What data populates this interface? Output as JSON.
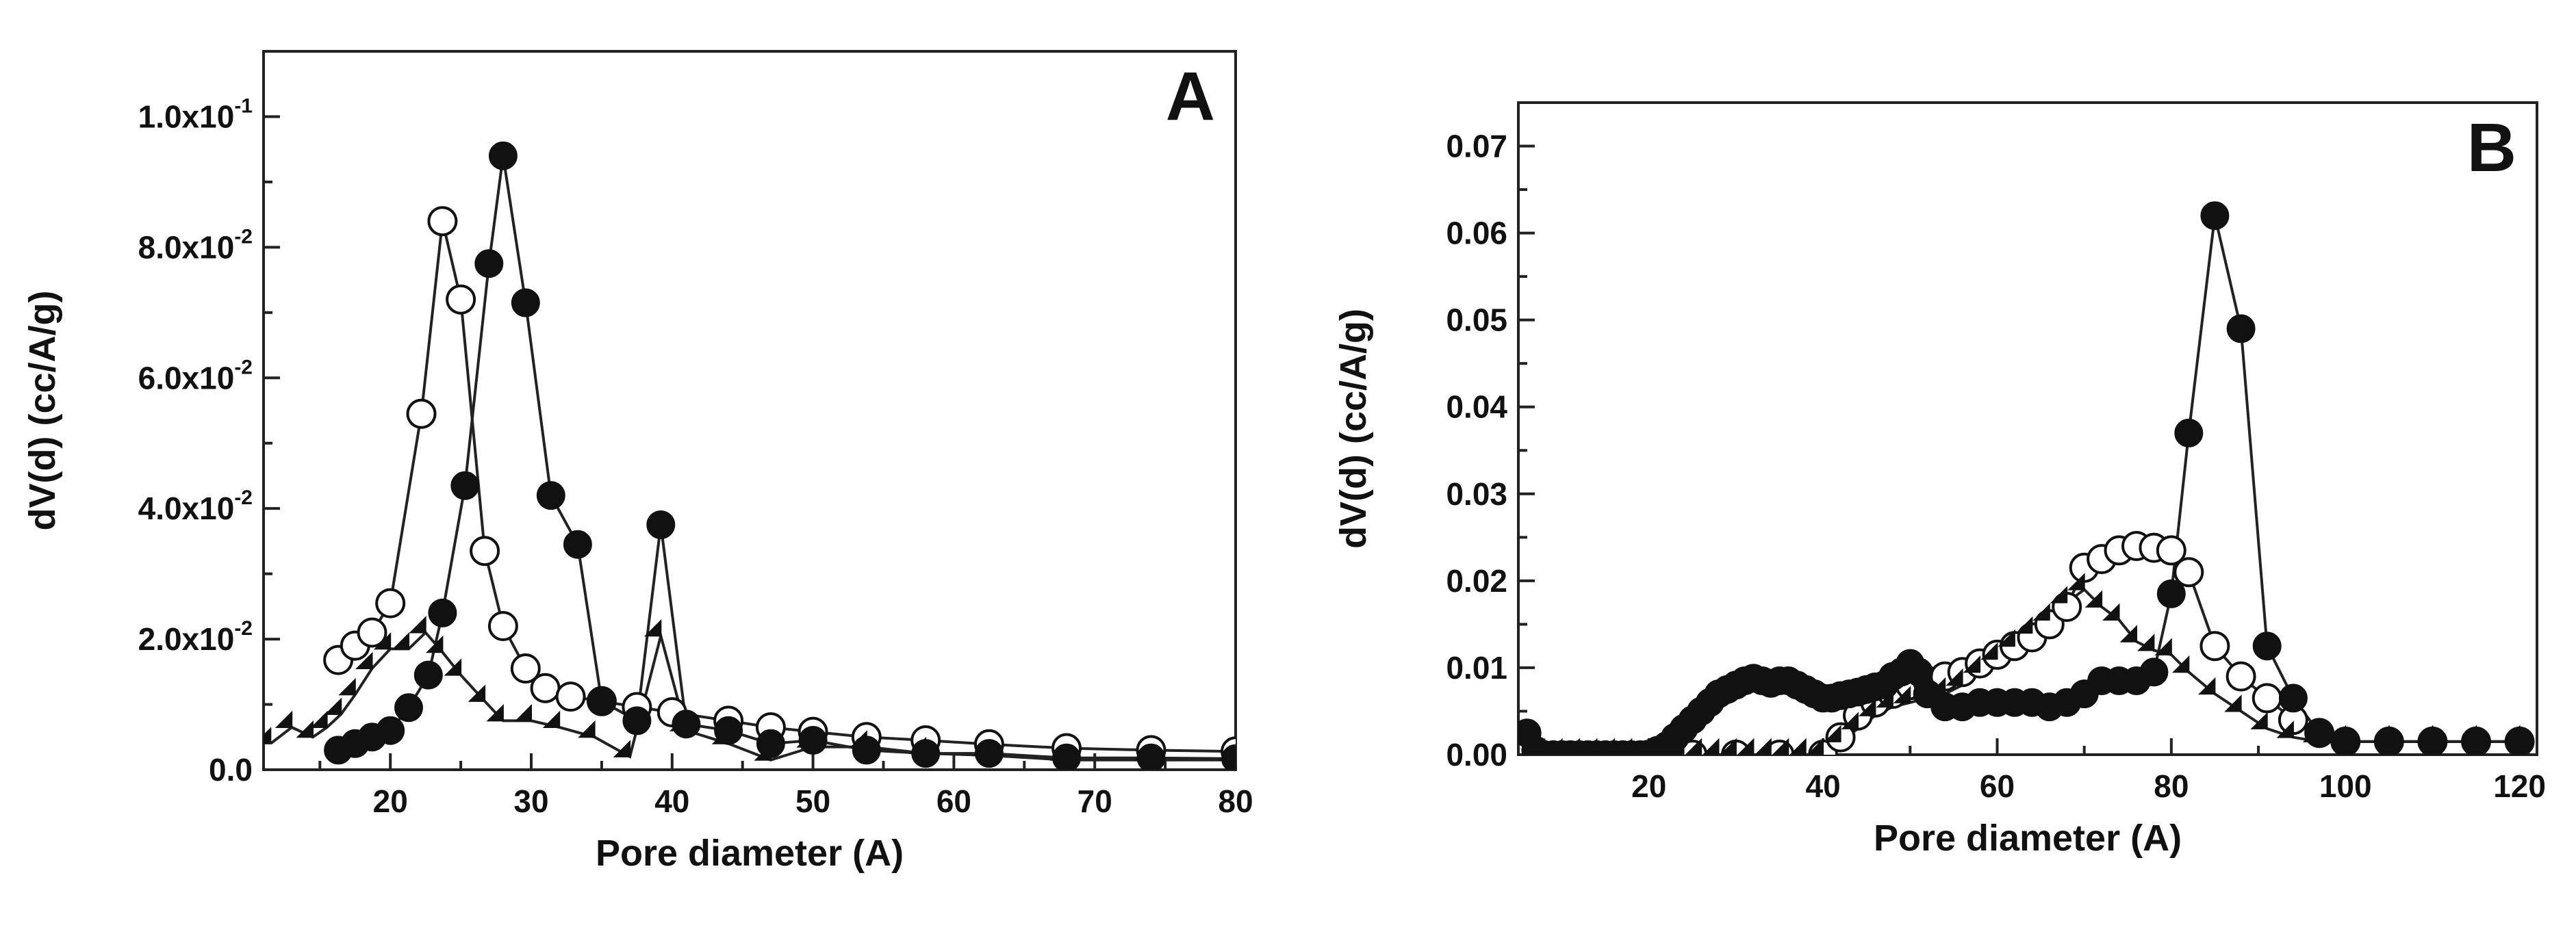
{
  "chart_data": [
    {
      "type": "line",
      "panel_label": "A",
      "xlabel": "Pore diameter (A)",
      "ylabel": "dV(d) (cc/A/g)",
      "xlim": [
        11,
        80
      ],
      "ylim": [
        0,
        0.11
      ],
      "grid": false,
      "legend": "none",
      "xticks": [
        20,
        30,
        40,
        50,
        60,
        70,
        80
      ],
      "yticks": [
        {
          "value": 0.0,
          "mantissa": "0.0",
          "exp": ""
        },
        {
          "value": 0.02,
          "mantissa": "2.0x10",
          "exp": "-2"
        },
        {
          "value": 0.04,
          "mantissa": "4.0x10",
          "exp": "-2"
        },
        {
          "value": 0.06,
          "mantissa": "6.0x10",
          "exp": "-2"
        },
        {
          "value": 0.08,
          "mantissa": "8.0x10",
          "exp": "-2"
        },
        {
          "value": 0.1,
          "mantissa": "1.0x10",
          "exp": "-1"
        }
      ],
      "series": [
        {
          "name": "open circles",
          "marker": "open-circle",
          "x": [
            16.3,
            17.5,
            18.7,
            20,
            22.2,
            23.7,
            25,
            26.7,
            28,
            29.6,
            31,
            32.8,
            35,
            37.5,
            40,
            44,
            47,
            50,
            53.8,
            58,
            62.5,
            68,
            74,
            80
          ],
          "y": [
            0.0168,
            0.019,
            0.021,
            0.0255,
            0.0545,
            0.084,
            0.072,
            0.0335,
            0.022,
            0.0155,
            0.0125,
            0.0112,
            0.0105,
            0.0096,
            0.0088,
            0.0075,
            0.0065,
            0.0058,
            0.005,
            0.0045,
            0.0039,
            0.0033,
            0.003,
            0.0028
          ]
        },
        {
          "name": "filled circles",
          "marker": "filled-circle",
          "x": [
            16.3,
            17.5,
            18.7,
            20,
            21.3,
            22.7,
            23.7,
            25.3,
            27,
            28,
            29.6,
            31.4,
            33.3,
            35,
            37.5,
            39.2,
            41,
            44,
            47,
            50,
            53.8,
            58,
            62.5,
            68,
            74,
            80
          ],
          "y": [
            0.003,
            0.004,
            0.005,
            0.006,
            0.0095,
            0.0145,
            0.024,
            0.0435,
            0.0775,
            0.094,
            0.0715,
            0.042,
            0.0345,
            0.0105,
            0.0075,
            0.0375,
            0.007,
            0.006,
            0.004,
            0.0045,
            0.003,
            0.0025,
            0.0025,
            0.0018,
            0.0018,
            0.0017
          ]
        },
        {
          "name": "filled diamonds",
          "marker": "filled-diamond",
          "x": [
            11.5,
            13,
            14.5,
            15.5,
            16.5,
            17.5,
            18.7,
            20,
            21.3,
            22.5,
            23.7,
            25,
            26.7,
            28,
            30,
            32,
            34.5,
            37,
            39.2,
            41,
            44,
            47,
            50,
            53.8,
            58,
            62.5,
            68,
            74,
            80
          ],
          "y": [
            0.004,
            0.0065,
            0.005,
            0.0065,
            0.0085,
            0.0115,
            0.0155,
            0.0185,
            0.0185,
            0.021,
            0.018,
            0.0145,
            0.0105,
            0.0075,
            0.0075,
            0.0065,
            0.005,
            0.002,
            0.0205,
            0.006,
            0.004,
            0.0015,
            0.0035,
            0.0035,
            0.0025,
            0.0022,
            0.0015,
            0.0015,
            0.0015
          ]
        }
      ]
    },
    {
      "type": "line",
      "panel_label": "B",
      "xlabel": "Pore diameter (A)",
      "ylabel": "dV(d) (cc/A/g)",
      "xlim": [
        5,
        122
      ],
      "ylim": [
        0,
        0.075
      ],
      "grid": false,
      "legend": "none",
      "xticks": [
        20,
        40,
        60,
        80,
        100,
        120
      ],
      "yticks": [
        {
          "value": 0.0,
          "mantissa": "0.00",
          "exp": ""
        },
        {
          "value": 0.01,
          "mantissa": "0.01",
          "exp": ""
        },
        {
          "value": 0.02,
          "mantissa": "0.02",
          "exp": ""
        },
        {
          "value": 0.03,
          "mantissa": "0.03",
          "exp": ""
        },
        {
          "value": 0.04,
          "mantissa": "0.04",
          "exp": ""
        },
        {
          "value": 0.05,
          "mantissa": "0.05",
          "exp": ""
        },
        {
          "value": 0.06,
          "mantissa": "0.06",
          "exp": ""
        },
        {
          "value": 0.07,
          "mantissa": "0.07",
          "exp": ""
        }
      ],
      "series": [
        {
          "name": "open circles",
          "marker": "open-circle",
          "x": [
            20,
            25,
            30,
            35,
            40,
            42,
            44,
            46,
            48,
            50,
            52,
            54,
            56,
            58,
            60,
            62,
            64,
            66,
            68,
            70,
            72,
            74,
            76,
            78,
            80,
            82,
            85,
            88,
            91,
            94,
            97,
            100,
            105,
            110,
            115,
            120
          ],
          "y": [
            0,
            0,
            0,
            0,
            0,
            0.002,
            0.0045,
            0.006,
            0.007,
            0.008,
            0.0085,
            0.009,
            0.0095,
            0.0105,
            0.0115,
            0.0125,
            0.0135,
            0.015,
            0.017,
            0.0215,
            0.0225,
            0.0235,
            0.024,
            0.0238,
            0.0235,
            0.021,
            0.0125,
            0.009,
            0.0065,
            0.004,
            0.0025,
            0.0015,
            0.0015,
            0.0015,
            0.0015,
            0.0015
          ]
        },
        {
          "name": "filled circles",
          "marker": "filled-circle",
          "x": [
            6,
            7,
            8,
            9,
            10,
            11,
            12,
            13,
            14,
            15,
            16,
            17,
            18,
            19,
            20,
            21,
            22,
            23,
            24,
            25,
            26,
            27,
            28,
            29,
            30,
            31,
            32,
            33,
            34,
            35,
            36,
            37,
            38,
            39,
            40,
            41,
            42,
            43,
            44,
            45,
            46,
            47,
            48,
            49,
            50,
            51,
            52,
            54,
            56,
            58,
            60,
            62,
            64,
            66,
            68,
            70,
            72,
            74,
            76,
            78,
            80,
            82,
            85,
            88,
            91,
            94,
            97,
            100,
            105,
            110,
            115,
            120
          ],
          "y": [
            0.0025,
            0.0005,
            0,
            0,
            0,
            0,
            0,
            0,
            0,
            0,
            0,
            0,
            0,
            0,
            0,
            0.0005,
            0.001,
            0.002,
            0.003,
            0.004,
            0.005,
            0.006,
            0.007,
            0.0075,
            0.008,
            0.0085,
            0.0088,
            0.0085,
            0.0082,
            0.0085,
            0.0085,
            0.008,
            0.0075,
            0.007,
            0.0065,
            0.0065,
            0.0068,
            0.007,
            0.0072,
            0.0075,
            0.0078,
            0.008,
            0.009,
            0.0095,
            0.0105,
            0.0095,
            0.007,
            0.0055,
            0.0055,
            0.006,
            0.006,
            0.006,
            0.006,
            0.0055,
            0.006,
            0.007,
            0.0085,
            0.0085,
            0.0085,
            0.0095,
            0.0185,
            0.037,
            0.062,
            0.049,
            0.0125,
            0.0065,
            0.0025,
            0.0015,
            0.0015,
            0.0015,
            0.0015,
            0.0015
          ]
        },
        {
          "name": "filled diamonds",
          "marker": "filled-diamond",
          "x": [
            6,
            8,
            10,
            12,
            14,
            16,
            18,
            20,
            22,
            24,
            26,
            28,
            30,
            32,
            34,
            36,
            38,
            40,
            42,
            44,
            46,
            48,
            50,
            52,
            54,
            56,
            58,
            60,
            62,
            64,
            66,
            68,
            70,
            72,
            74,
            76,
            78,
            80,
            82,
            85,
            88,
            91,
            94,
            97,
            100,
            105,
            110,
            115,
            120
          ],
          "y": [
            0.0015,
            0,
            0,
            0,
            0,
            0,
            0,
            0,
            0,
            0,
            0,
            0,
            0,
            0,
            0,
            0,
            0,
            0,
            0.0015,
            0.003,
            0.0045,
            0.0055,
            0.006,
            0.0065,
            0.007,
            0.008,
            0.0095,
            0.011,
            0.0125,
            0.014,
            0.0155,
            0.0175,
            0.019,
            0.017,
            0.0155,
            0.013,
            0.012,
            0.0115,
            0.0095,
            0.007,
            0.005,
            0.003,
            0.002,
            0.0015,
            0.0015,
            0.0015,
            0.0015,
            0.0015,
            0.0015
          ]
        }
      ]
    }
  ]
}
